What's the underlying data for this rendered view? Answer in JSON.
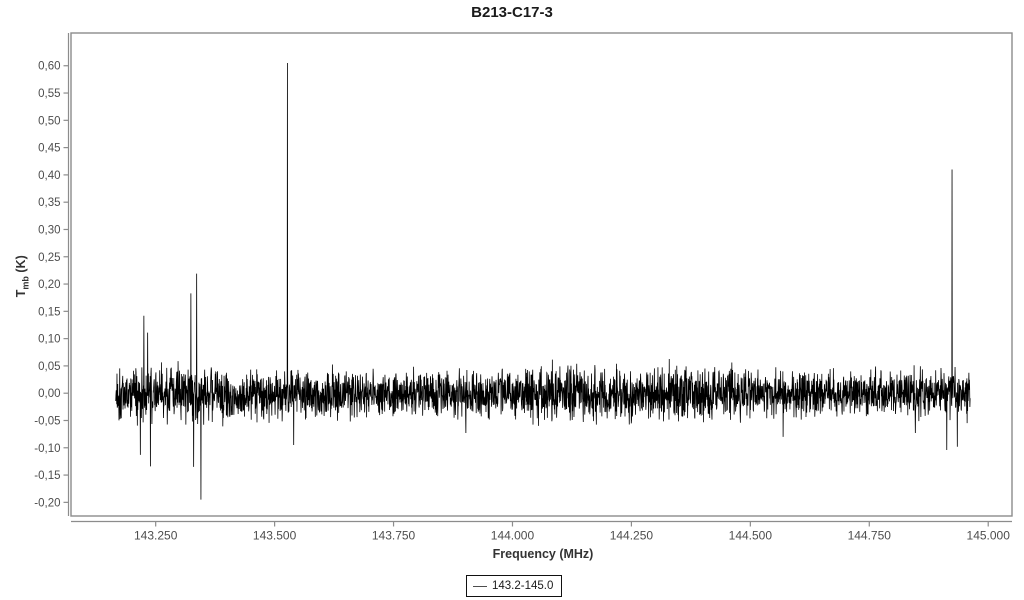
{
  "window": {
    "title": "B213-C17-3"
  },
  "colors": {
    "background": "#ffffff",
    "plot_border": "#8c8c8c",
    "axis_line": "#8c8c8c",
    "tick_label": "#4d4d4d",
    "title": "#1a1a1a",
    "series": "#000000"
  },
  "chart_data": {
    "type": "line",
    "title": "B213-C17-3",
    "xlabel": "Frequency (MHz)",
    "ylabel": {
      "main": "T",
      "sub": "mb",
      "unit": " (K)"
    },
    "grid": false,
    "xlim": [
      143.072,
      145.05
    ],
    "ylim": [
      -0.225,
      0.66
    ],
    "x_ticks": [
      {
        "value": 143.25,
        "label": "143.250"
      },
      {
        "value": 143.5,
        "label": "143.500"
      },
      {
        "value": 143.75,
        "label": "143.750"
      },
      {
        "value": 144.0,
        "label": "144.000"
      },
      {
        "value": 144.25,
        "label": "144.250"
      },
      {
        "value": 144.5,
        "label": "144.500"
      },
      {
        "value": 144.75,
        "label": "144.750"
      },
      {
        "value": 145.0,
        "label": "145.000"
      }
    ],
    "y_ticks": [
      {
        "value": -0.2,
        "label": "-0,20"
      },
      {
        "value": -0.15,
        "label": "-0,15"
      },
      {
        "value": -0.1,
        "label": "-0,10"
      },
      {
        "value": -0.05,
        "label": "-0,05"
      },
      {
        "value": 0.0,
        "label": "0,00"
      },
      {
        "value": 0.05,
        "label": "0,05"
      },
      {
        "value": 0.1,
        "label": "0,10"
      },
      {
        "value": 0.15,
        "label": "0,15"
      },
      {
        "value": 0.2,
        "label": "0,20"
      },
      {
        "value": 0.25,
        "label": "0,25"
      },
      {
        "value": 0.3,
        "label": "0,30"
      },
      {
        "value": 0.35,
        "label": "0,35"
      },
      {
        "value": 0.4,
        "label": "0,40"
      },
      {
        "value": 0.45,
        "label": "0,45"
      },
      {
        "value": 0.5,
        "label": "0,50"
      },
      {
        "value": 0.55,
        "label": "0,55"
      },
      {
        "value": 0.6,
        "label": "0,60"
      }
    ],
    "legend": {
      "position": "bottom",
      "label": "143.2-145.0"
    },
    "series": [
      {
        "name": "143.2-145.0",
        "color": "#000000",
        "x_range_mhz": [
          143.166,
          144.962
        ],
        "n_points": 3400,
        "baseline_K": 0.0,
        "noise_rms_K": 0.022,
        "noise_peak_K": 0.065,
        "seed": 1337,
        "peaks": [
          {
            "freq_mhz": 143.218,
            "value_K": -0.113
          },
          {
            "freq_mhz": 143.225,
            "value_K": 0.142
          },
          {
            "freq_mhz": 143.233,
            "value_K": 0.111
          },
          {
            "freq_mhz": 143.239,
            "value_K": -0.134
          },
          {
            "freq_mhz": 143.324,
            "value_K": 0.183
          },
          {
            "freq_mhz": 143.33,
            "value_K": -0.135
          },
          {
            "freq_mhz": 143.336,
            "value_K": 0.219
          },
          {
            "freq_mhz": 143.345,
            "value_K": -0.195
          },
          {
            "freq_mhz": 143.527,
            "value_K": 0.605
          },
          {
            "freq_mhz": 143.54,
            "value_K": -0.095
          },
          {
            "freq_mhz": 143.902,
            "value_K": -0.073
          },
          {
            "freq_mhz": 144.569,
            "value_K": -0.08
          },
          {
            "freq_mhz": 144.847,
            "value_K": -0.073
          },
          {
            "freq_mhz": 144.913,
            "value_K": -0.104
          },
          {
            "freq_mhz": 144.924,
            "value_K": 0.41
          },
          {
            "freq_mhz": 144.935,
            "value_K": -0.098
          }
        ]
      }
    ]
  }
}
